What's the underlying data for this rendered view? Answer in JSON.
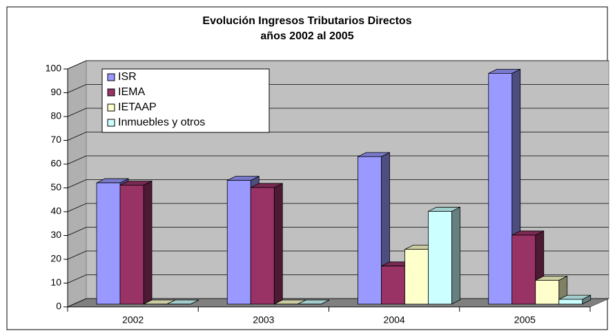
{
  "chart_data": {
    "type": "bar3d",
    "title": [
      "Evolución Ingresos Tributarios Directos",
      "años 2002 al 2005"
    ],
    "categories": [
      "2002",
      "2003",
      "2004",
      "2005"
    ],
    "series": [
      {
        "name": "ISR",
        "color": "#9999ff",
        "values": [
          51,
          52,
          62,
          97
        ]
      },
      {
        "name": "IEMA",
        "color": "#993366",
        "values": [
          50,
          49,
          16,
          29
        ]
      },
      {
        "name": "IETAAP",
        "color": "#ffffcc",
        "values": [
          0,
          0,
          23,
          10
        ]
      },
      {
        "name": "Inmuebles y otros",
        "color": "#ccffff",
        "values": [
          0,
          0,
          39,
          2
        ]
      }
    ],
    "ylim": [
      0,
      100
    ],
    "yticks": [
      0,
      10,
      20,
      30,
      40,
      50,
      60,
      70,
      80,
      90,
      100
    ],
    "grid": true,
    "legend": "top-left"
  }
}
